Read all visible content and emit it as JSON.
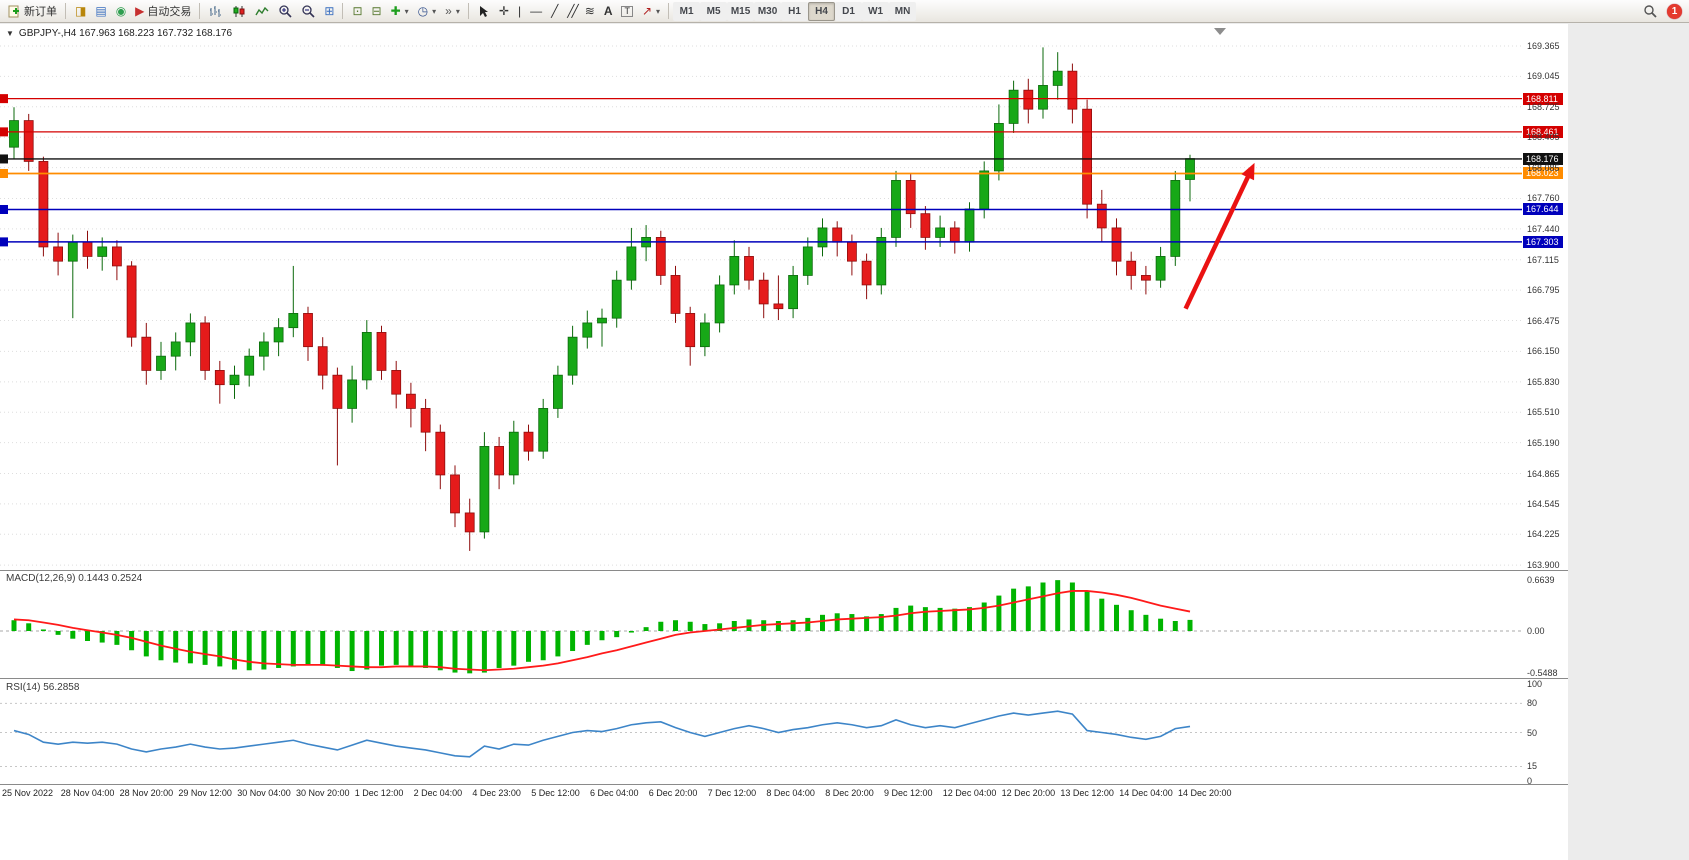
{
  "toolbar": {
    "new_order_label": "新订单",
    "autotrading_label": "自动交易",
    "timeframes": [
      "M1",
      "M5",
      "M15",
      "M30",
      "H1",
      "H4",
      "D1",
      "W1",
      "MN"
    ],
    "active_timeframe": "H4",
    "notification_badge": "1",
    "icon_glyphs": {
      "collapse": "▼",
      "dropdown": "▾",
      "new_chart": "◨",
      "market_watch": "▤",
      "navigator": "◉",
      "autotrading": "▶",
      "tile": "⊞",
      "window": "⊡",
      "cascade": "⊟",
      "indicators": "✚",
      "clock": "◷",
      "shift": "»",
      "crosshair": "✛",
      "vline": "|",
      "hline": "—",
      "trend": "╱",
      "channel": "╱╱",
      "fib": "≋",
      "text": "A",
      "label": "T",
      "arrows": "↗"
    }
  },
  "chart": {
    "header": {
      "text": "GBPJPY-,H4  167.963 168.223 167.732 168.176",
      "symbol": "GBPJPY-",
      "period": "H4",
      "open": "167.963",
      "high": "168.223",
      "low": "167.732",
      "close": "168.176"
    }
  },
  "chart_data": {
    "type": "candlestick",
    "symbol": "GBPJPY-",
    "timeframe": "H4",
    "title": "GBPJPY-,H4 167.963 168.223 167.732 168.176",
    "price_axis_labels": [
      "169.365",
      "169.045",
      "168.725",
      "168.405",
      "168.085",
      "167.760",
      "167.440",
      "167.115",
      "166.795",
      "166.475",
      "166.150",
      "165.830",
      "165.510",
      "165.190",
      "164.865",
      "164.545",
      "164.225",
      "163.900"
    ],
    "price_range": [
      163.9,
      169.365
    ],
    "x_labels": [
      "25 Nov 2022",
      "28 Nov 04:00",
      "28 Nov 20:00",
      "29 Nov 12:00",
      "30 Nov 04:00",
      "30 Nov 20:00",
      "1 Dec 12:00",
      "2 Dec 04:00",
      "4 Dec 23:00",
      "5 Dec 12:00",
      "6 Dec 04:00",
      "6 Dec 20:00",
      "7 Dec 12:00",
      "8 Dec 04:00",
      "8 Dec 20:00",
      "9 Dec 12:00",
      "12 Dec 04:00",
      "12 Dec 20:00",
      "13 Dec 12:00",
      "14 Dec 04:00",
      "14 Dec 20:00"
    ],
    "x_label_step": 4,
    "up_color": "#17a817",
    "down_color": "#e51b1b",
    "candles": [
      [
        168.3,
        168.72,
        168.18,
        168.58
      ],
      [
        168.58,
        168.65,
        168.05,
        168.15
      ],
      [
        168.15,
        168.2,
        167.15,
        167.25
      ],
      [
        167.25,
        167.4,
        166.95,
        167.1
      ],
      [
        167.1,
        167.38,
        166.5,
        167.3
      ],
      [
        167.3,
        167.42,
        167.02,
        167.15
      ],
      [
        167.15,
        167.35,
        167.0,
        167.25
      ],
      [
        167.25,
        167.32,
        166.9,
        167.05
      ],
      [
        167.05,
        167.1,
        166.2,
        166.3
      ],
      [
        166.3,
        166.45,
        165.8,
        165.95
      ],
      [
        165.95,
        166.25,
        165.85,
        166.1
      ],
      [
        166.1,
        166.35,
        165.95,
        166.25
      ],
      [
        166.25,
        166.55,
        166.1,
        166.45
      ],
      [
        166.45,
        166.52,
        165.85,
        165.95
      ],
      [
        165.95,
        166.05,
        165.6,
        165.8
      ],
      [
        165.8,
        166.0,
        165.65,
        165.9
      ],
      [
        165.9,
        166.18,
        165.78,
        166.1
      ],
      [
        166.1,
        166.35,
        165.95,
        166.25
      ],
      [
        166.25,
        166.5,
        166.1,
        166.4
      ],
      [
        166.4,
        167.05,
        166.3,
        166.55
      ],
      [
        166.55,
        166.62,
        166.05,
        166.2
      ],
      [
        166.2,
        166.3,
        165.75,
        165.9
      ],
      [
        165.9,
        165.98,
        164.95,
        165.55
      ],
      [
        165.55,
        166.0,
        165.4,
        165.85
      ],
      [
        165.85,
        166.48,
        165.75,
        166.35
      ],
      [
        166.35,
        166.42,
        165.85,
        165.95
      ],
      [
        165.95,
        166.05,
        165.55,
        165.7
      ],
      [
        165.7,
        165.82,
        165.35,
        165.55
      ],
      [
        165.55,
        165.65,
        165.1,
        165.3
      ],
      [
        165.3,
        165.38,
        164.7,
        164.85
      ],
      [
        164.85,
        164.95,
        164.3,
        164.45
      ],
      [
        164.45,
        164.6,
        164.05,
        164.25
      ],
      [
        164.25,
        165.3,
        164.18,
        165.15
      ],
      [
        165.15,
        165.25,
        164.7,
        164.85
      ],
      [
        164.85,
        165.42,
        164.75,
        165.3
      ],
      [
        165.3,
        165.38,
        165.0,
        165.1
      ],
      [
        165.1,
        165.65,
        165.02,
        165.55
      ],
      [
        165.55,
        166.0,
        165.45,
        165.9
      ],
      [
        165.9,
        166.42,
        165.8,
        166.3
      ],
      [
        166.3,
        166.58,
        166.18,
        166.45
      ],
      [
        166.45,
        166.6,
        166.2,
        166.5
      ],
      [
        166.5,
        167.0,
        166.4,
        166.9
      ],
      [
        166.9,
        167.45,
        166.8,
        167.25
      ],
      [
        167.25,
        167.48,
        167.1,
        167.35
      ],
      [
        167.35,
        167.42,
        166.85,
        166.95
      ],
      [
        166.95,
        167.05,
        166.45,
        166.55
      ],
      [
        166.55,
        166.62,
        166.0,
        166.2
      ],
      [
        166.2,
        166.55,
        166.1,
        166.45
      ],
      [
        166.45,
        166.95,
        166.35,
        166.85
      ],
      [
        166.85,
        167.32,
        166.75,
        167.15
      ],
      [
        167.15,
        167.25,
        166.8,
        166.9
      ],
      [
        166.9,
        166.98,
        166.5,
        166.65
      ],
      [
        166.65,
        166.95,
        166.48,
        166.6
      ],
      [
        166.6,
        167.05,
        166.5,
        166.95
      ],
      [
        166.95,
        167.35,
        166.85,
        167.25
      ],
      [
        167.25,
        167.55,
        167.15,
        167.45
      ],
      [
        167.45,
        167.52,
        167.15,
        167.3
      ],
      [
        167.3,
        167.38,
        166.95,
        167.1
      ],
      [
        167.1,
        167.18,
        166.7,
        166.85
      ],
      [
        166.85,
        167.45,
        166.75,
        167.35
      ],
      [
        167.35,
        168.05,
        167.25,
        167.95
      ],
      [
        167.95,
        168.02,
        167.45,
        167.6
      ],
      [
        167.6,
        167.68,
        167.22,
        167.35
      ],
      [
        167.35,
        167.58,
        167.25,
        167.45
      ],
      [
        167.45,
        167.52,
        167.18,
        167.3
      ],
      [
        167.3,
        167.72,
        167.2,
        167.65
      ],
      [
        167.65,
        168.15,
        167.55,
        168.05
      ],
      [
        168.05,
        168.75,
        167.95,
        168.55
      ],
      [
        168.55,
        169.0,
        168.45,
        168.9
      ],
      [
        168.9,
        169.02,
        168.55,
        168.7
      ],
      [
        168.7,
        169.35,
        168.6,
        168.95
      ],
      [
        168.95,
        169.3,
        168.8,
        169.1
      ],
      [
        169.1,
        169.18,
        168.55,
        168.7
      ],
      [
        168.7,
        168.8,
        167.55,
        167.7
      ],
      [
        167.7,
        167.85,
        167.3,
        167.45
      ],
      [
        167.45,
        167.55,
        166.95,
        167.1
      ],
      [
        167.1,
        167.2,
        166.8,
        166.95
      ],
      [
        166.95,
        167.05,
        166.75,
        166.9
      ],
      [
        166.9,
        167.25,
        166.82,
        167.15
      ],
      [
        167.15,
        168.05,
        167.05,
        167.95
      ],
      [
        167.96,
        168.22,
        167.73,
        168.18
      ]
    ],
    "hlines": [
      {
        "price": 168.811,
        "label": "168.811",
        "color": "#d40000",
        "width": 1.3
      },
      {
        "price": 168.461,
        "label": "168.461",
        "color": "#d40000",
        "width": 1.3
      },
      {
        "price": 168.176,
        "label": "168.176",
        "color": "#111111",
        "width": 1.4
      },
      {
        "price": 168.023,
        "label": "168.023",
        "color": "#ff8c00",
        "width": 1.8
      },
      {
        "price": 167.644,
        "label": "167.644",
        "color": "#0000bb",
        "width": 1.5
      },
      {
        "price": 167.303,
        "label": "167.303",
        "color": "#0000bb",
        "width": 1.5
      }
    ],
    "indicators": [
      {
        "name": "MACD",
        "params": "(12,26,9)",
        "label": "MACD(12,26,9) 0.1443 0.2524",
        "current_main": "0.1443",
        "current_signal": "0.2524",
        "axis_labels": [
          "0.6639",
          "0.00",
          "-0.5488"
        ],
        "hist_color": "#00b400",
        "signal_color": "#ff1a1a",
        "histogram": [
          0.14,
          0.1,
          0.02,
          -0.05,
          -0.1,
          -0.13,
          -0.15,
          -0.18,
          -0.25,
          -0.33,
          -0.38,
          -0.41,
          -0.42,
          -0.44,
          -0.46,
          -0.5,
          -0.51,
          -0.5,
          -0.48,
          -0.46,
          -0.44,
          -0.45,
          -0.48,
          -0.52,
          -0.5,
          -0.45,
          -0.44,
          -0.46,
          -0.48,
          -0.51,
          -0.54,
          -0.55,
          -0.54,
          -0.48,
          -0.45,
          -0.4,
          -0.38,
          -0.33,
          -0.26,
          -0.18,
          -0.12,
          -0.08,
          -0.02,
          0.05,
          0.12,
          0.14,
          0.12,
          0.09,
          0.1,
          0.13,
          0.15,
          0.14,
          0.13,
          0.14,
          0.17,
          0.21,
          0.23,
          0.22,
          0.19,
          0.22,
          0.3,
          0.33,
          0.31,
          0.3,
          0.29,
          0.31,
          0.37,
          0.46,
          0.55,
          0.58,
          0.63,
          0.66,
          0.63,
          0.52,
          0.42,
          0.34,
          0.27,
          0.21,
          0.16,
          0.13,
          0.1443
        ],
        "signal": [
          0.15,
          0.14,
          0.11,
          0.08,
          0.04,
          0.01,
          -0.02,
          -0.05,
          -0.09,
          -0.14,
          -0.19,
          -0.23,
          -0.27,
          -0.3,
          -0.33,
          -0.37,
          -0.4,
          -0.42,
          -0.43,
          -0.44,
          -0.44,
          -0.44,
          -0.45,
          -0.46,
          -0.47,
          -0.47,
          -0.46,
          -0.46,
          -0.46,
          -0.47,
          -0.49,
          -0.5,
          -0.51,
          -0.5,
          -0.49,
          -0.47,
          -0.45,
          -0.42,
          -0.38,
          -0.34,
          -0.29,
          -0.25,
          -0.2,
          -0.15,
          -0.1,
          -0.05,
          -0.02,
          0.0,
          0.02,
          0.04,
          0.06,
          0.08,
          0.09,
          0.1,
          0.11,
          0.13,
          0.15,
          0.16,
          0.17,
          0.18,
          0.2,
          0.23,
          0.25,
          0.26,
          0.27,
          0.28,
          0.3,
          0.33,
          0.37,
          0.41,
          0.45,
          0.49,
          0.52,
          0.52,
          0.5,
          0.47,
          0.43,
          0.38,
          0.33,
          0.29,
          0.2524
        ]
      },
      {
        "name": "RSI",
        "params": "(14)",
        "label": "RSI(14) 56.2858",
        "current_value": "56.2858",
        "axis_labels": [
          "100",
          "80",
          "50",
          "15",
          "0"
        ],
        "axis_values": [
          100,
          80,
          50,
          15,
          0
        ],
        "levels": [
          80,
          50,
          15
        ],
        "line_color": "#3d85c8",
        "values": [
          52,
          48,
          40,
          38,
          40,
          39,
          40,
          38,
          33,
          30,
          33,
          35,
          38,
          35,
          33,
          34,
          36,
          38,
          40,
          42,
          38,
          35,
          32,
          37,
          42,
          39,
          36,
          34,
          32,
          29,
          26,
          25,
          36,
          33,
          38,
          37,
          42,
          46,
          50,
          52,
          51,
          54,
          58,
          60,
          61,
          55,
          50,
          46,
          50,
          54,
          57,
          54,
          50,
          53,
          55,
          58,
          60,
          58,
          55,
          57,
          63,
          58,
          55,
          57,
          55,
          59,
          63,
          67,
          70,
          68,
          70,
          72,
          69,
          52,
          50,
          48,
          45,
          43,
          46,
          54,
          56.29
        ]
      }
    ],
    "annotations": [
      {
        "type": "arrow",
        "color": "#ea1212",
        "from": {
          "bar": 79.7,
          "price": 166.6
        },
        "to": {
          "bar": 84.1,
          "price": 168.04
        }
      }
    ]
  }
}
